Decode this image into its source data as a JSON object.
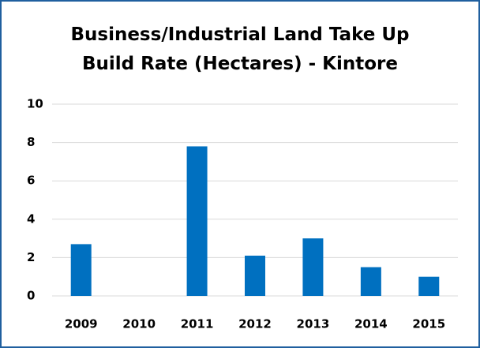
{
  "chart_data": {
    "type": "bar",
    "title": "Business/Industrial Land Take Up Build Rate (Hectares) - Kintore",
    "categories": [
      "2009",
      "2010",
      "2011",
      "2012",
      "2013",
      "2014",
      "2015"
    ],
    "values": [
      2.7,
      0,
      7.8,
      2.1,
      3.0,
      1.5,
      1.0
    ],
    "color": "#0070c0",
    "ylim": [
      0,
      10
    ],
    "yticks": [
      0,
      2,
      4,
      6,
      8,
      10
    ],
    "grid": true
  }
}
